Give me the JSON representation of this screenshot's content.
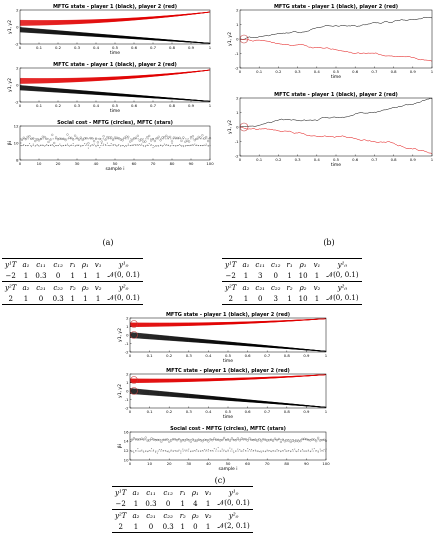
{
  "panels": {
    "a": {
      "caption": "(a)",
      "plots": [
        {
          "title": "MFTG state - player 1 (black), player 2 (red)",
          "ylabel": "y1, y2",
          "xlabel": "time",
          "yticks": [
            "2",
            "0",
            "-2"
          ],
          "xticks": [
            "0",
            "0.1",
            "0.2",
            "0.3",
            "0.4",
            "0.5",
            "0.6",
            "0.7",
            "0.8",
            "0.9",
            "1"
          ]
        },
        {
          "title": "MFTC state - player 1 (black), player 2 (red)",
          "ylabel": "y1, y2",
          "xlabel": "time",
          "yticks": [
            "2",
            "0",
            "-2"
          ],
          "xticks": [
            "0",
            "0.1",
            "0.2",
            "0.3",
            "0.4",
            "0.5",
            "0.6",
            "0.7",
            "0.8",
            "0.9",
            "1"
          ]
        },
        {
          "title": "Social cost - MFTG (circles), MFTC (stars)",
          "ylabel": "βi",
          "xlabel": "sample i",
          "yticks": [
            "12",
            "10",
            "8"
          ],
          "xticks": [
            "0",
            "10",
            "20",
            "30",
            "40",
            "50",
            "60",
            "70",
            "80",
            "90",
            "100"
          ]
        }
      ]
    },
    "b": {
      "caption": "(b)",
      "plots": [
        {
          "title": "MFTG state - player 1 (black), player 2 (red)",
          "ylabel": "y1, y2",
          "xlabel": "time",
          "yticks": [
            "2",
            "1",
            "0",
            "-1",
            "-2"
          ],
          "xticks": [
            "0",
            "0.1",
            "0.2",
            "0.3",
            "0.4",
            "0.5",
            "0.6",
            "0.7",
            "0.8",
            "0.9",
            "1"
          ]
        },
        {
          "title": "MFTC state - player 1 (black), player 2 (red)",
          "ylabel": "y1, y2",
          "xlabel": "time",
          "yticks": [
            "2",
            "1",
            "0",
            "-1",
            "-2"
          ],
          "xticks": [
            "0",
            "0.1",
            "0.2",
            "0.3",
            "0.4",
            "0.5",
            "0.6",
            "0.7",
            "0.8",
            "0.9",
            "1"
          ]
        }
      ]
    },
    "c": {
      "caption": "(c)",
      "plots": [
        {
          "title": "MFTG state - player 1 (black), player 2 (red)",
          "ylabel": "y1, y2",
          "xlabel": "time",
          "yticks": [
            "2",
            "1",
            "0",
            "-1",
            "-2"
          ],
          "xticks": [
            "0",
            "0.1",
            "0.2",
            "0.3",
            "0.4",
            "0.5",
            "0.6",
            "0.7",
            "0.8",
            "0.9",
            "1"
          ]
        },
        {
          "title": "MFTC state - player 1 (black), player 2 (red)",
          "ylabel": "y1, y2",
          "xlabel": "time",
          "yticks": [
            "2",
            "1",
            "0",
            "-1",
            "-2"
          ],
          "xticks": [
            "0",
            "0.1",
            "0.2",
            "0.3",
            "0.4",
            "0.5",
            "0.6",
            "0.7",
            "0.8",
            "0.9",
            "1"
          ]
        },
        {
          "title": "Social cost - MFTG (circles), MFTC (stars)",
          "ylabel": "βi",
          "xlabel": "sample i",
          "yticks": [
            "16",
            "14",
            "12",
            "10"
          ],
          "xticks": [
            "0",
            "10",
            "20",
            "30",
            "40",
            "50",
            "60",
            "70",
            "80",
            "90",
            "100"
          ]
        }
      ]
    }
  },
  "tables": {
    "a": {
      "row1": {
        "head": [
          "y¹T",
          "a₁",
          "c₁₁",
          "c₁₂",
          "r₁",
          "ρ₁",
          "v₁",
          "y¹₀"
        ],
        "vals": [
          "−2",
          "1",
          "0.3",
          "0",
          "1",
          "1",
          "1",
          "𝒩(0, 0.1)"
        ]
      },
      "row2": {
        "head": [
          "y²T",
          "a₂",
          "c₂₁",
          "c₂₂",
          "r₂",
          "ρ₂",
          "v₂",
          "y²₀"
        ],
        "vals": [
          "2",
          "1",
          "0",
          "0.3",
          "1",
          "1",
          "1",
          "𝒩(0, 0.1)"
        ]
      }
    },
    "b": {
      "row1": {
        "head": [
          "y¹T",
          "a₁",
          "c₁₁",
          "c₁₂",
          "r₁",
          "ρ₁",
          "v₁",
          "y¹₀"
        ],
        "vals": [
          "−2",
          "1",
          "3",
          "0",
          "1",
          "10",
          "1",
          "𝒩(0, 0.1)"
        ]
      },
      "row2": {
        "head": [
          "y²T",
          "a₂",
          "c₂₁",
          "c₂₂",
          "r₂",
          "ρ₂",
          "v₂",
          "y²₀"
        ],
        "vals": [
          "2",
          "1",
          "0",
          "3",
          "1",
          "10",
          "1",
          "𝒩(0, 0.1)"
        ]
      }
    },
    "c": {
      "row1": {
        "head": [
          "y¹T",
          "a₁",
          "c₁₁",
          "c₁₂",
          "r₁",
          "ρ₁",
          "v₁",
          "y¹₀"
        ],
        "vals": [
          "−2",
          "1",
          "0.3",
          "0",
          "1",
          "4",
          "1",
          "𝒩(0, 0.1)"
        ]
      },
      "row2": {
        "head": [
          "y²T",
          "a₂",
          "c₂₁",
          "c₂₂",
          "r₂",
          "ρ₂",
          "v₂",
          "y²₀"
        ],
        "vals": [
          "2",
          "1",
          "0",
          "0.3",
          "1",
          "0",
          "1",
          "𝒩(2, 0.1)"
        ]
      }
    }
  },
  "colors": {
    "player1": "#000000",
    "player2": "#e00000",
    "marker": "#444444"
  }
}
